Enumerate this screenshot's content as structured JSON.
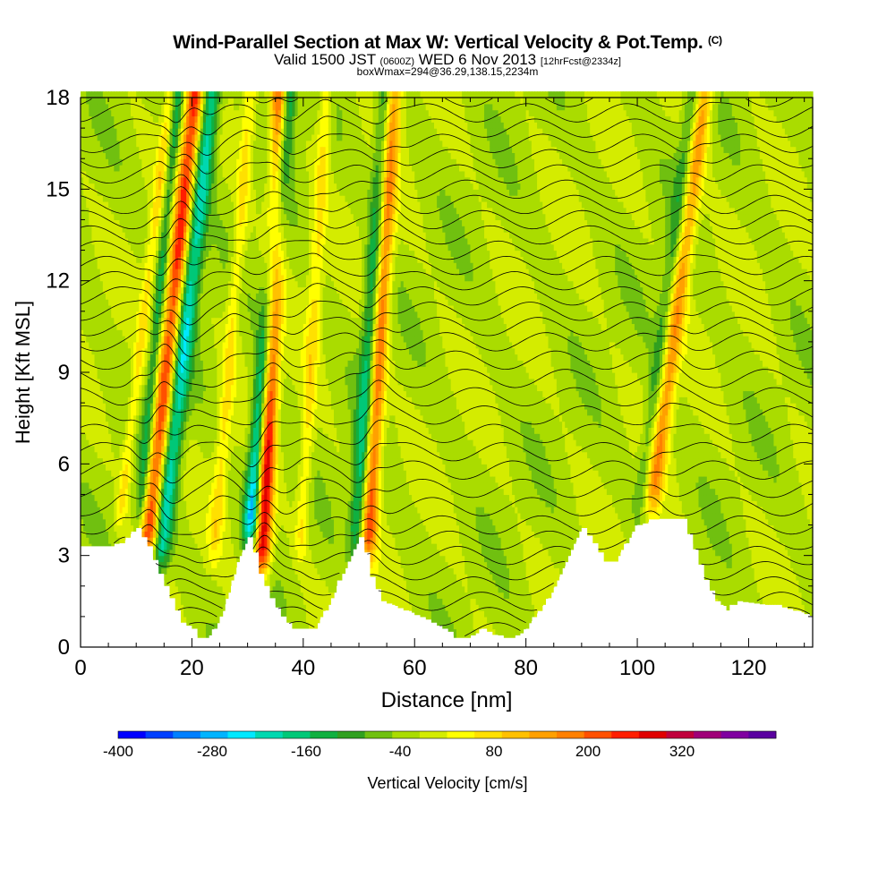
{
  "title": {
    "main": "Wind-Parallel Section at Max W: Vertical Velocity & Pot.Temp.",
    "copyright": "(C)",
    "valid_pre": "Valid 1500 JST",
    "valid_utc": "(0600Z)",
    "valid_date": "WED 6 Nov 2013",
    "forecast": "[12hrFcst@2334z]",
    "box": "boxWmax=294@36.29,138.15,2234m"
  },
  "chart_data": {
    "type": "heatmap",
    "xlabel": "Distance [nm]",
    "ylabel": "Height [Kft MSL]",
    "xlim": [
      0,
      131.5
    ],
    "ylim": [
      0,
      18
    ],
    "xticks": [
      0,
      20,
      40,
      60,
      80,
      100,
      120
    ],
    "yticks": [
      0,
      3,
      6,
      9,
      12,
      15,
      18
    ],
    "colorbar": {
      "label": "Vertical Velocity [cm/s]",
      "tick_labels": [
        "-400",
        "-280",
        "-160",
        "-40",
        "80",
        "200",
        "320"
      ],
      "tick_values": [
        -400,
        -280,
        -160,
        -40,
        80,
        200,
        320
      ],
      "range": [
        -400,
        440
      ],
      "step": 40,
      "colors": [
        "#0000ff",
        "#0040ff",
        "#0080ff",
        "#00b4ff",
        "#00e8ff",
        "#00d8b0",
        "#00c878",
        "#10b040",
        "#30a020",
        "#70c010",
        "#aadc00",
        "#d4ec00",
        "#ffff00",
        "#ffe000",
        "#ffc000",
        "#ffa000",
        "#ff8000",
        "#ff5000",
        "#ff1e00",
        "#e00000",
        "#c0003c",
        "#a00078",
        "#8000a0",
        "#5a00a0"
      ]
    },
    "terrain_kft": [
      [
        0,
        3.3
      ],
      [
        6,
        3.3
      ],
      [
        8,
        3.5
      ],
      [
        10,
        3.9
      ],
      [
        12,
        3.3
      ],
      [
        14,
        2.4
      ],
      [
        16,
        1.6
      ],
      [
        18,
        0.8
      ],
      [
        20,
        0.6
      ],
      [
        21,
        0.3
      ],
      [
        23,
        0.3
      ],
      [
        24,
        0.6
      ],
      [
        26,
        1.4
      ],
      [
        28,
        2.6
      ],
      [
        30,
        3.6
      ],
      [
        31,
        3.1
      ],
      [
        32,
        2.4
      ],
      [
        34,
        1.6
      ],
      [
        36,
        1.0
      ],
      [
        38,
        0.6
      ],
      [
        40,
        0.6
      ],
      [
        42,
        0.6
      ],
      [
        43,
        0.9
      ],
      [
        44,
        1.2
      ],
      [
        46,
        2.0
      ],
      [
        48,
        2.8
      ],
      [
        50,
        3.6
      ],
      [
        51,
        3.1
      ],
      [
        52,
        2.3
      ],
      [
        54,
        1.5
      ],
      [
        58,
        1.2
      ],
      [
        62,
        0.9
      ],
      [
        64,
        0.7
      ],
      [
        66,
        0.5
      ],
      [
        67,
        0.3
      ],
      [
        70,
        0.3
      ],
      [
        72,
        0.6
      ],
      [
        74,
        0.4
      ],
      [
        76,
        0.3
      ],
      [
        78,
        0.3
      ],
      [
        80,
        0.6
      ],
      [
        84,
        1.6
      ],
      [
        88,
        3.0
      ],
      [
        90,
        3.9
      ],
      [
        92,
        3.4
      ],
      [
        94,
        2.8
      ],
      [
        96,
        2.8
      ],
      [
        98,
        3.4
      ],
      [
        100,
        4.0
      ],
      [
        104,
        4.2
      ],
      [
        108,
        4.2
      ],
      [
        110,
        3.2
      ],
      [
        112,
        2.2
      ],
      [
        114,
        1.5
      ],
      [
        116,
        1.2
      ],
      [
        118,
        1.5
      ],
      [
        122,
        1.4
      ],
      [
        126,
        1.3
      ],
      [
        131.5,
        1.0
      ]
    ],
    "updraft_bands": [
      {
        "x_bottom": 12.0,
        "x_top": 20.5,
        "z_from": 3.0,
        "width_nm": 1.6,
        "w_cm_s": 300
      },
      {
        "x_bottom": 32.5,
        "x_top": 36.0,
        "z_from": 2.5,
        "width_nm": 1.5,
        "w_cm_s": 400
      },
      {
        "x_bottom": 51.5,
        "x_top": 56.0,
        "z_from": 3.0,
        "width_nm": 1.5,
        "w_cm_s": 280
      },
      {
        "x_bottom": 102.5,
        "x_top": 112.0,
        "z_from": 4.5,
        "width_nm": 1.6,
        "w_cm_s": 200
      },
      {
        "x_bottom": 7.0,
        "x_top": 16.0,
        "z_from": 4.0,
        "width_nm": 1.0,
        "w_cm_s": 100
      },
      {
        "x_bottom": 24.0,
        "x_top": 30.5,
        "z_from": 3.0,
        "width_nm": 1.2,
        "w_cm_s": 100
      },
      {
        "x_bottom": 39.5,
        "x_top": 44.0,
        "z_from": 3.0,
        "width_nm": 1.2,
        "w_cm_s": 100
      }
    ],
    "downdraft_bands": [
      {
        "x_bottom": 14.0,
        "x_top": 23.5,
        "z_from": 2.5,
        "width_nm": 1.7,
        "w_cm_s": -220
      },
      {
        "x_bottom": 30.5,
        "x_top": 37.0,
        "z_from": 3.5,
        "width_nm": 1.5,
        "w_cm_s": -320
      },
      {
        "x_bottom": 49.5,
        "x_top": 55.0,
        "z_from": 3.2,
        "width_nm": 1.5,
        "w_cm_s": -200
      },
      {
        "x_bottom": 10.5,
        "x_top": 17.5,
        "z_from": 4.0,
        "width_nm": 1.0,
        "w_cm_s": -130
      },
      {
        "x_bottom": 100.5,
        "x_top": 110.0,
        "z_from": 4.5,
        "width_nm": 1.4,
        "w_cm_s": -100
      }
    ],
    "isentrope_base_kft": [
      0.5,
      1.0,
      1.5,
      2.0,
      2.5,
      3.0,
      3.5,
      4.0,
      4.6,
      5.2,
      5.8,
      6.4,
      7.0,
      7.6,
      8.2,
      8.8,
      9.4,
      10.0,
      10.5,
      11.0,
      11.5,
      12.0,
      12.5,
      13.0,
      13.5,
      14.0,
      14.5,
      15.0,
      15.5,
      16.0,
      16.5,
      17.0,
      17.5,
      18.0
    ]
  }
}
